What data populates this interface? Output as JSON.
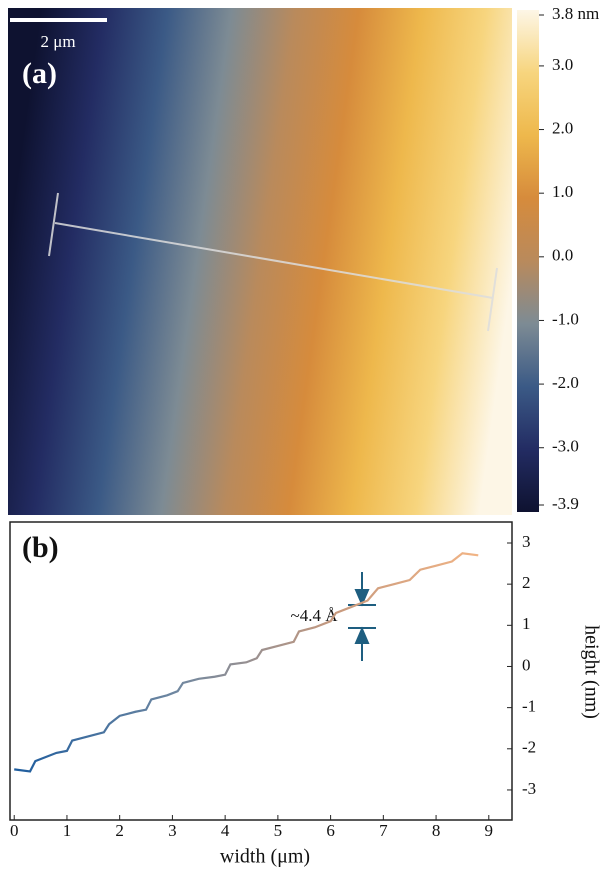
{
  "chart_data": [
    {
      "type": "heatmap",
      "panel_label": "(a)",
      "scale_bar": "2 μm",
      "clim": [
        -3.9,
        3.8
      ],
      "cticks": [
        {
          "value": 3.8,
          "label": "3.8 nm"
        },
        {
          "value": 3,
          "label": "3.0"
        },
        {
          "value": 2,
          "label": "2.0"
        },
        {
          "value": 1,
          "label": "1.0"
        },
        {
          "value": 0,
          "label": "0.0"
        },
        {
          "value": -1,
          "label": "-1.0"
        },
        {
          "value": -2,
          "label": "-2.0"
        },
        {
          "value": -3,
          "label": "-3.0"
        },
        {
          "value": -3.9,
          "label": "-3.9"
        }
      ],
      "colors": [
        "#0e1230",
        "#232c63",
        "#3b5a86",
        "#7d8b94",
        "#b98a5c",
        "#d68b3c",
        "#eeb84c",
        "#f7d57e",
        "#fdf6e6"
      ]
    },
    {
      "type": "line",
      "panel_label": "(b)",
      "annotation": "~4.4 Å",
      "x_label": "width (μm)",
      "y_label": "height (nm)",
      "x": [
        0,
        0.3,
        0.4,
        0.6,
        0.8,
        1.0,
        1.1,
        1.4,
        1.7,
        1.8,
        2.0,
        2.3,
        2.5,
        2.6,
        2.9,
        3.1,
        3.2,
        3.5,
        3.8,
        4.0,
        4.1,
        4.4,
        4.6,
        4.7,
        5.0,
        5.3,
        5.4,
        5.7,
        6.0,
        6.1,
        6.4,
        6.7,
        6.9,
        7.2,
        7.5,
        7.7,
        8.0,
        8.3,
        8.5,
        8.8
      ],
      "series": [
        {
          "gradient": [
            "#1d5c9e",
            "#6f87a0",
            "#c89a7e",
            "#f8b886"
          ],
          "values": [
            -2.5,
            -2.55,
            -2.3,
            -2.2,
            -2.1,
            -2.05,
            -1.8,
            -1.7,
            -1.6,
            -1.4,
            -1.2,
            -1.1,
            -1.05,
            -0.8,
            -0.7,
            -0.6,
            -0.4,
            -0.3,
            -0.25,
            -0.2,
            0.05,
            0.1,
            0.2,
            0.4,
            0.5,
            0.6,
            0.85,
            0.95,
            1.1,
            1.3,
            1.45,
            1.6,
            1.9,
            2.0,
            2.1,
            2.35,
            2.45,
            2.55,
            2.75,
            2.7
          ]
        }
      ],
      "xlim": [
        -0.08,
        9.44
      ],
      "ylim": [
        -3.73,
        3.51
      ],
      "xticks": [
        0,
        1,
        2,
        3,
        4,
        5,
        6,
        7,
        8,
        9
      ],
      "yticks": [
        -3,
        -2,
        -1,
        0,
        1,
        2,
        3
      ]
    }
  ]
}
